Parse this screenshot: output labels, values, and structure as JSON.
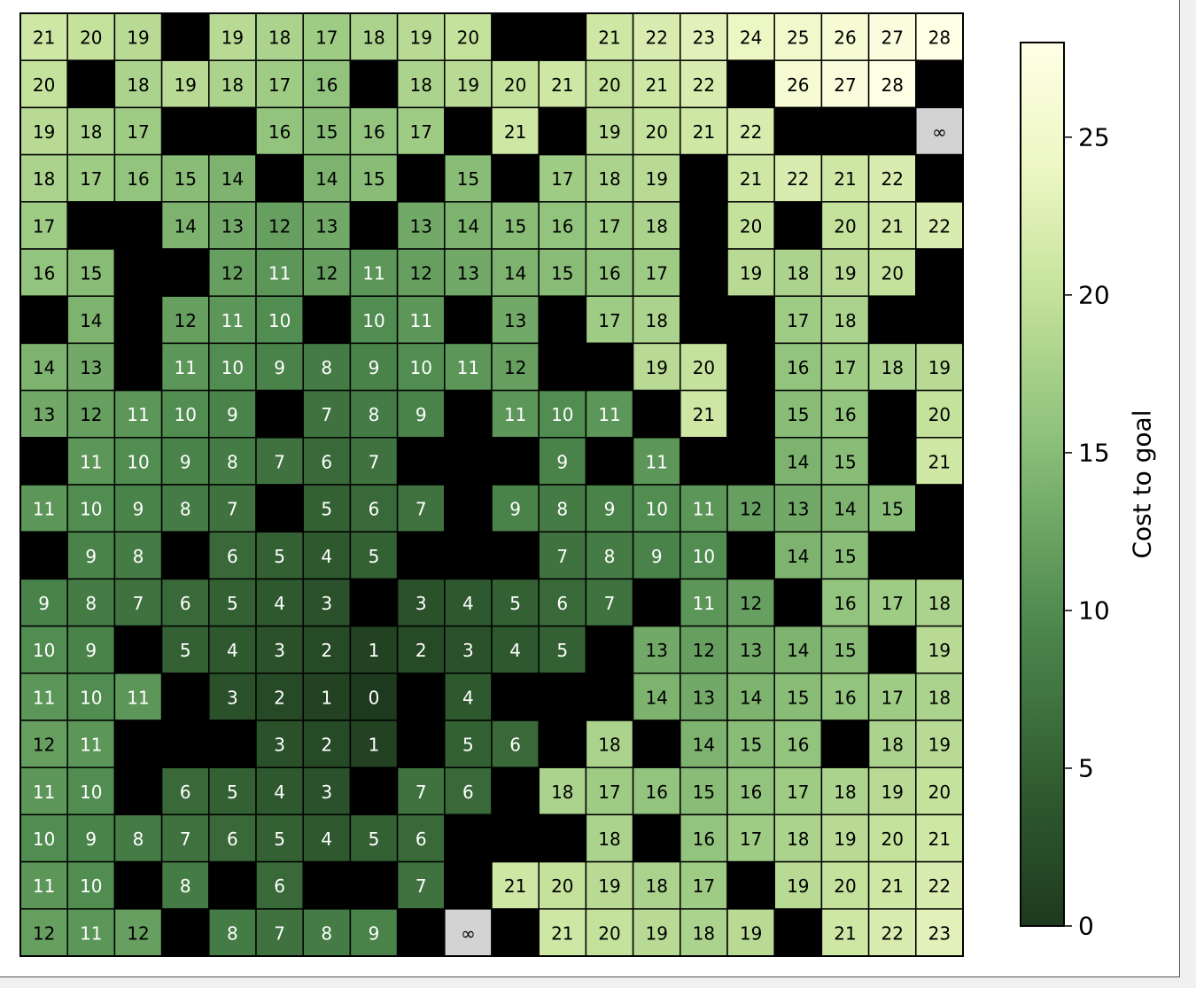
{
  "chart_data": {
    "type": "heatmap",
    "rows": 20,
    "cols": 20,
    "wall_marker": null,
    "unreachable_symbol": "∞",
    "grid": [
      [
        21,
        20,
        19,
        null,
        19,
        18,
        17,
        18,
        19,
        20,
        null,
        null,
        21,
        22,
        23,
        24,
        25,
        26,
        27,
        28
      ],
      [
        20,
        null,
        18,
        19,
        18,
        17,
        16,
        null,
        18,
        19,
        20,
        21,
        20,
        21,
        22,
        null,
        26,
        27,
        28,
        null
      ],
      [
        19,
        18,
        17,
        null,
        null,
        16,
        15,
        16,
        17,
        null,
        21,
        null,
        19,
        20,
        21,
        22,
        null,
        null,
        null,
        "∞"
      ],
      [
        18,
        17,
        16,
        15,
        14,
        null,
        14,
        15,
        null,
        15,
        null,
        17,
        18,
        19,
        null,
        21,
        22,
        21,
        22,
        null
      ],
      [
        17,
        null,
        null,
        14,
        13,
        12,
        13,
        null,
        13,
        14,
        15,
        16,
        17,
        18,
        null,
        20,
        null,
        20,
        21,
        22
      ],
      [
        16,
        15,
        null,
        null,
        12,
        11,
        12,
        11,
        12,
        13,
        14,
        15,
        16,
        17,
        null,
        19,
        18,
        19,
        20,
        null
      ],
      [
        null,
        14,
        null,
        12,
        11,
        10,
        null,
        10,
        11,
        null,
        13,
        null,
        17,
        18,
        null,
        null,
        17,
        18,
        null,
        null
      ],
      [
        14,
        13,
        null,
        11,
        10,
        9,
        8,
        9,
        10,
        11,
        12,
        null,
        null,
        19,
        20,
        null,
        16,
        17,
        18,
        19
      ],
      [
        13,
        12,
        11,
        10,
        9,
        null,
        7,
        8,
        9,
        null,
        11,
        10,
        11,
        null,
        21,
        null,
        15,
        16,
        null,
        20
      ],
      [
        null,
        11,
        10,
        9,
        8,
        7,
        6,
        7,
        null,
        null,
        null,
        9,
        null,
        11,
        null,
        null,
        14,
        15,
        null,
        21
      ],
      [
        11,
        10,
        9,
        8,
        7,
        null,
        5,
        6,
        7,
        null,
        9,
        8,
        9,
        10,
        11,
        12,
        13,
        14,
        15,
        null
      ],
      [
        null,
        9,
        8,
        null,
        6,
        5,
        4,
        5,
        null,
        null,
        null,
        7,
        8,
        9,
        10,
        null,
        14,
        15,
        null,
        null
      ],
      [
        9,
        8,
        7,
        6,
        5,
        4,
        3,
        null,
        3,
        4,
        5,
        6,
        7,
        null,
        11,
        12,
        null,
        16,
        17,
        18
      ],
      [
        10,
        9,
        null,
        5,
        4,
        3,
        2,
        1,
        2,
        3,
        4,
        5,
        null,
        13,
        12,
        13,
        14,
        15,
        null,
        19
      ],
      [
        11,
        10,
        11,
        null,
        3,
        2,
        1,
        0,
        null,
        4,
        null,
        null,
        null,
        14,
        13,
        14,
        15,
        16,
        17,
        18
      ],
      [
        12,
        11,
        null,
        null,
        null,
        3,
        2,
        1,
        null,
        5,
        6,
        null,
        18,
        null,
        14,
        15,
        16,
        null,
        18,
        19
      ],
      [
        11,
        10,
        null,
        6,
        5,
        4,
        3,
        null,
        7,
        6,
        null,
        18,
        17,
        16,
        15,
        16,
        17,
        18,
        19,
        20
      ],
      [
        10,
        9,
        8,
        7,
        6,
        5,
        4,
        5,
        6,
        null,
        null,
        null,
        18,
        null,
        16,
        17,
        18,
        19,
        20,
        21
      ],
      [
        11,
        10,
        null,
        8,
        null,
        6,
        null,
        null,
        7,
        null,
        21,
        20,
        19,
        18,
        17,
        null,
        19,
        20,
        21,
        22
      ],
      [
        12,
        11,
        12,
        null,
        8,
        7,
        8,
        9,
        null,
        "∞",
        null,
        21,
        20,
        19,
        18,
        19,
        null,
        21,
        22,
        23
      ]
    ],
    "colorbar": {
      "label": "Cost to goal",
      "vmin": 0,
      "vmax": 28,
      "ticks": [
        0,
        5,
        10,
        15,
        20,
        25
      ],
      "tick_labels": [
        "0",
        "5",
        "10",
        "15",
        "20",
        "25"
      ]
    },
    "colors": {
      "wall": "#000000",
      "unreachable": "#d3d3d3",
      "cell_border": "#000000",
      "text_dark": "#000000",
      "text_light": "#ffffff",
      "colormap_stops": [
        [
          0.0,
          "#1e3a1e"
        ],
        [
          0.15,
          "#2f5a2f"
        ],
        [
          0.35,
          "#4f8a4f"
        ],
        [
          0.55,
          "#8cc07a"
        ],
        [
          0.72,
          "#c6e39c"
        ],
        [
          0.86,
          "#edf7c4"
        ],
        [
          1.0,
          "#ffffe5"
        ]
      ]
    }
  }
}
